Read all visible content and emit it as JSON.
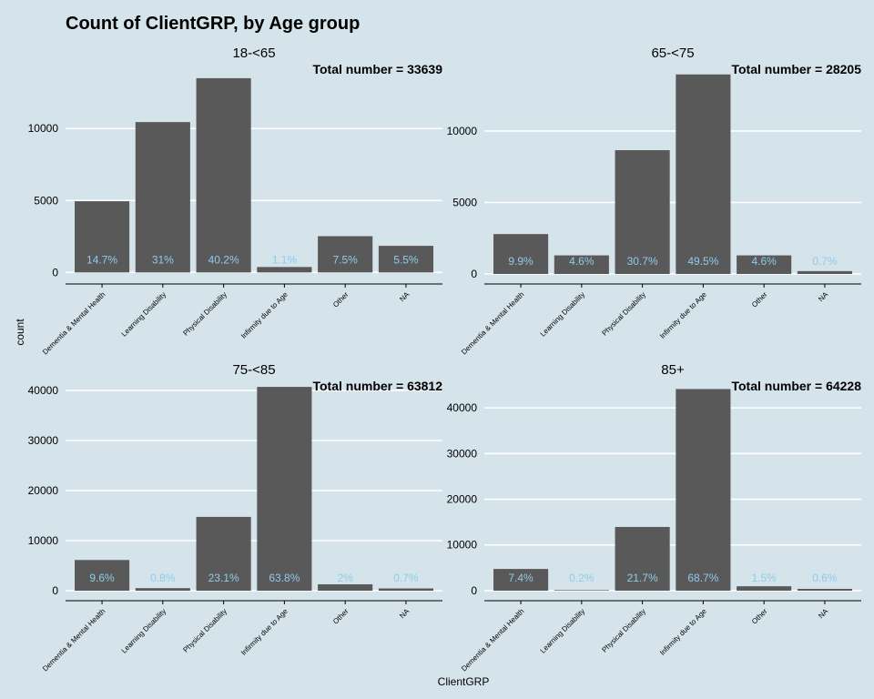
{
  "title": "Count of ClientGRP, by Age group",
  "chart_data": {
    "type": "bar",
    "title": "Count of ClientGRP, by Age group",
    "xlabel": "ClientGRP",
    "ylabel": "count",
    "categories": [
      "Dementia & Mental Health",
      "Learning Disability",
      "Physical Disability",
      "Infirmity due to Age",
      "Other",
      "NA"
    ],
    "bar_color": "#595959",
    "label_color": "#8ecbea",
    "grid": true,
    "panels": [
      {
        "name": "18-<65",
        "total_label": "Total number = 33639",
        "values": [
          4950,
          10450,
          13500,
          380,
          2520,
          1850
        ],
        "labels": [
          "14.7%",
          "31%",
          "40.2%",
          "1.1%",
          "7.5%",
          "5.5%"
        ],
        "ylim": [
          -800,
          14000
        ],
        "yticks": [
          0,
          5000,
          10000
        ]
      },
      {
        "name": "65-<75",
        "total_label": "Total number = 28205",
        "values": [
          2790,
          1300,
          8660,
          13960,
          1300,
          200
        ],
        "labels": [
          "9.9%",
          "4.6%",
          "30.7%",
          "49.5%",
          "4.6%",
          "0.7%"
        ],
        "ylim": [
          -700,
          14200
        ],
        "yticks": [
          0,
          5000,
          10000
        ]
      },
      {
        "name": "75-<85",
        "total_label": "Total number = 63812",
        "values": [
          6130,
          510,
          14740,
          40710,
          1280,
          450
        ],
        "labels": [
          "9.6%",
          "0.8%",
          "23.1%",
          "63.8%",
          "2%",
          "0.7%"
        ],
        "ylim": [
          -2000,
          42000
        ],
        "yticks": [
          0,
          10000,
          20000,
          30000,
          40000
        ]
      },
      {
        "name": "85+",
        "total_label": "Total number = 64228",
        "values": [
          4750,
          130,
          13940,
          44120,
          960,
          390
        ],
        "labels": [
          "7.4%",
          "0.2%",
          "21.7%",
          "68.7%",
          "1.5%",
          "0.6%"
        ],
        "ylim": [
          -2200,
          46000
        ],
        "yticks": [
          0,
          10000,
          20000,
          30000,
          40000
        ]
      }
    ]
  }
}
